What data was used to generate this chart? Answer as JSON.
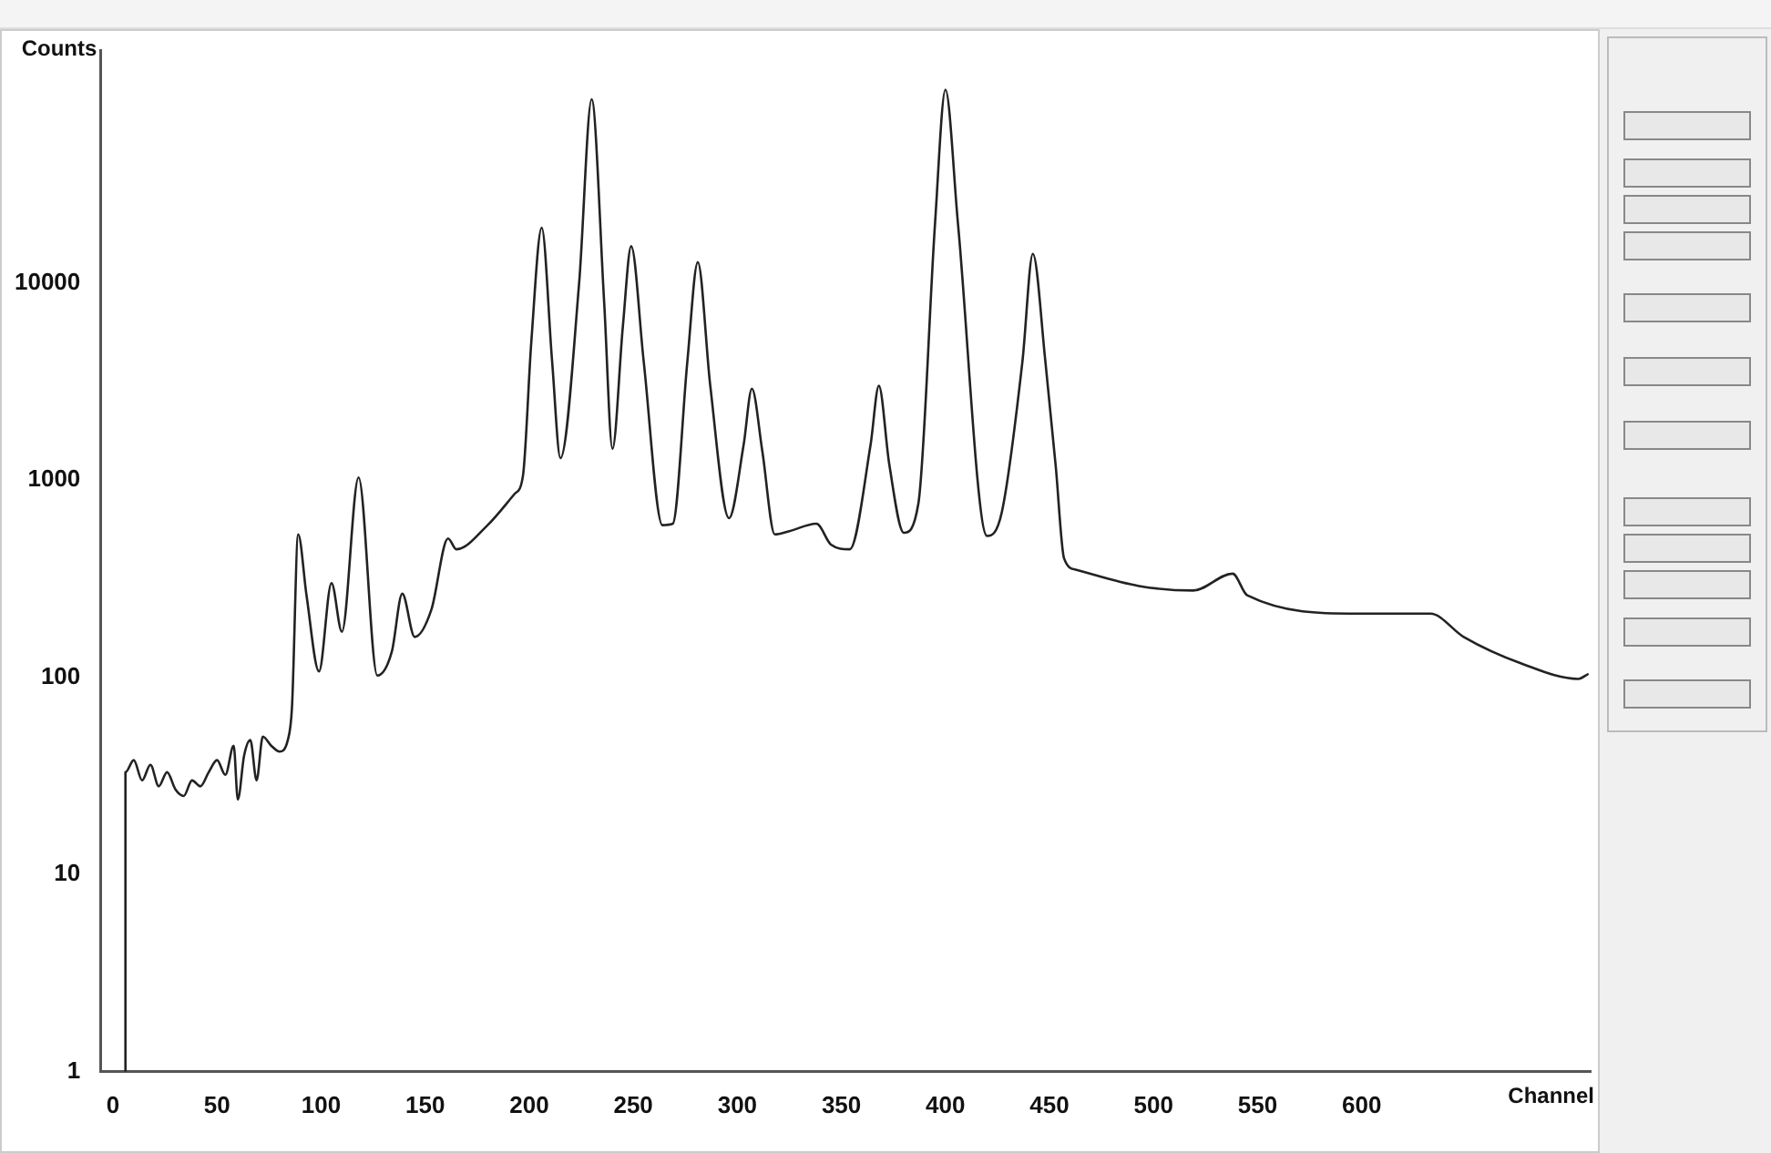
{
  "chart_data": {
    "type": "line",
    "xlabel": "Channel",
    "ylabel": "Counts",
    "log": "y",
    "grid": false,
    "legend": false,
    "marker": "none",
    "line_style": "solid",
    "xlim": [
      -6,
      710
    ],
    "xticks": [
      0,
      50,
      100,
      150,
      200,
      250,
      300,
      350,
      400,
      450,
      500,
      550,
      600
    ],
    "ylim": [
      1,
      150000
    ],
    "yticks": [
      1,
      10,
      100,
      1000,
      10000
    ],
    "series": [
      {
        "color": "#222222",
        "x": [
          6,
          6,
          10,
          14,
          18,
          22,
          26,
          30,
          34,
          38,
          42,
          46,
          50,
          54,
          58,
          60,
          63,
          66,
          69,
          72,
          76,
          80,
          84,
          86,
          89,
          93,
          99,
          105,
          110,
          118,
          127,
          134,
          139,
          145,
          153,
          161,
          165,
          180,
          193,
          197,
          201,
          206,
          211,
          215,
          224,
          230,
          236,
          240,
          245,
          249,
          255,
          264,
          269,
          276,
          281,
          287,
          296,
          303,
          307,
          312,
          318,
          325,
          338,
          345,
          354,
          364,
          368,
          373,
          380,
          387,
          395,
          400,
          406,
          420,
          427,
          437,
          442,
          448,
          453,
          457,
          463,
          493,
          519,
          538,
          545,
          598,
          633,
          649,
          677,
          704,
          709
        ],
        "values": [
          1,
          33,
          38,
          30,
          36,
          28,
          33,
          27,
          25,
          30,
          28,
          33,
          38,
          32,
          45,
          24,
          40,
          48,
          30,
          50,
          45,
          42,
          48,
          70,
          530,
          260,
          107,
          300,
          170,
          1030,
          102,
          135,
          265,
          160,
          220,
          505,
          445,
          590,
          850,
          1050,
          5000,
          19000,
          4000,
          1290,
          10000,
          85000,
          8000,
          1440,
          6000,
          15300,
          4000,
          590,
          600,
          4000,
          12700,
          3000,
          640,
          1500,
          2900,
          1400,
          530,
          550,
          600,
          470,
          445,
          1500,
          3000,
          1200,
          540,
          760,
          20000,
          95000,
          20000,
          520,
          680,
          4000,
          14000,
          4000,
          1170,
          400,
          350,
          290,
          275,
          335,
          260,
          210,
          210,
          160,
          117,
          98,
          104
        ]
      }
    ]
  }
}
